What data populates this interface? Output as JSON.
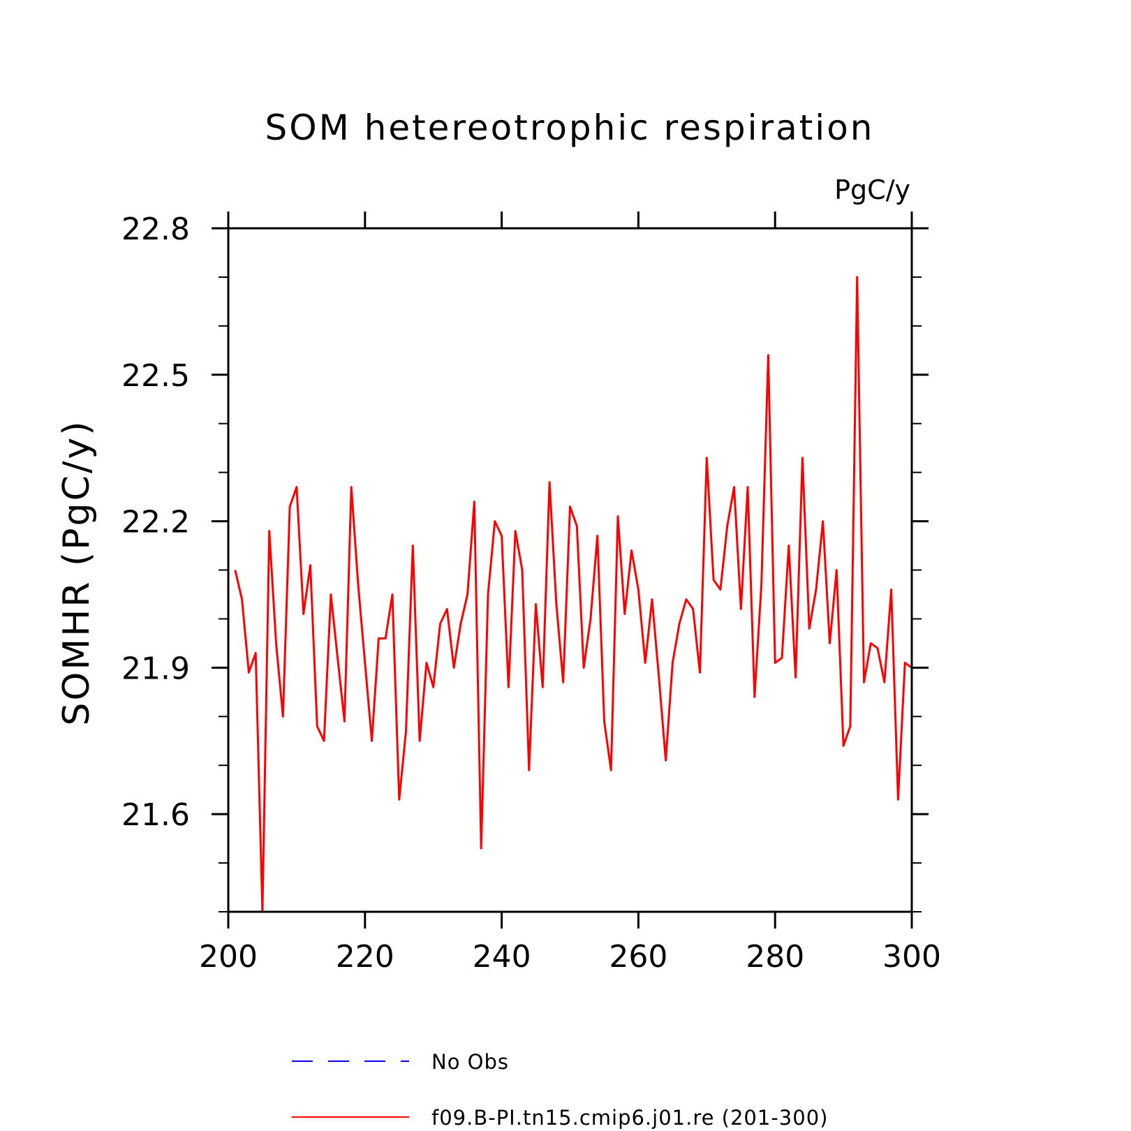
{
  "chart_data": {
    "type": "line",
    "title": "SOM hetereotrophic respiration",
    "units_label": "PgC/y",
    "ylabel": "SOMHR  (PgC/y)",
    "xlabel": "",
    "xlim": [
      200,
      300
    ],
    "ylim": [
      21.4,
      22.8
    ],
    "xticks": [
      200,
      220,
      240,
      260,
      280,
      300
    ],
    "xtick_labels": [
      "200",
      "220",
      "240",
      "260",
      "280",
      "300"
    ],
    "yticks": [
      21.6,
      21.9,
      22.2,
      22.5,
      22.8
    ],
    "ytick_labels": [
      "21.6",
      "21.9",
      "22.2",
      "22.5",
      "22.8"
    ],
    "grid": false,
    "legend_position": "bottom",
    "series": [
      {
        "name": "No Obs",
        "color": "#0000ff",
        "style": "dashed",
        "x": [],
        "y": []
      },
      {
        "name": "f09.B-PI.tn15.cmip6.j01.re (201-300)",
        "color": "#ff0000",
        "style": "solid",
        "x": [
          201,
          202,
          203,
          204,
          205,
          206,
          207,
          208,
          209,
          210,
          211,
          212,
          213,
          214,
          215,
          216,
          217,
          218,
          219,
          220,
          221,
          222,
          223,
          224,
          225,
          226,
          227,
          228,
          229,
          230,
          231,
          232,
          233,
          234,
          235,
          236,
          237,
          238,
          239,
          240,
          241,
          242,
          243,
          244,
          245,
          246,
          247,
          248,
          249,
          250,
          251,
          252,
          253,
          254,
          255,
          256,
          257,
          258,
          259,
          260,
          261,
          262,
          263,
          264,
          265,
          266,
          267,
          268,
          269,
          270,
          271,
          272,
          273,
          274,
          275,
          276,
          277,
          278,
          279,
          280,
          281,
          282,
          283,
          284,
          285,
          286,
          287,
          288,
          289,
          290,
          291,
          292,
          293,
          294,
          295,
          296,
          297,
          298,
          299,
          300
        ],
        "y": [
          22.1,
          22.04,
          21.89,
          21.93,
          21.4,
          22.18,
          21.95,
          21.8,
          22.23,
          22.27,
          22.01,
          22.11,
          21.78,
          21.75,
          22.05,
          21.92,
          21.79,
          22.27,
          22.07,
          21.91,
          21.75,
          21.96,
          21.96,
          22.05,
          21.63,
          21.77,
          22.15,
          21.75,
          21.91,
          21.86,
          21.99,
          22.02,
          21.9,
          21.99,
          22.05,
          22.24,
          21.53,
          22.05,
          22.2,
          22.17,
          21.86,
          22.18,
          22.1,
          21.69,
          22.03,
          21.86,
          22.28,
          22.03,
          21.87,
          22.23,
          22.19,
          21.9,
          22.0,
          22.17,
          21.79,
          21.69,
          22.21,
          22.01,
          22.14,
          22.06,
          21.91,
          22.04,
          21.88,
          21.71,
          21.91,
          21.99,
          22.04,
          22.02,
          21.89,
          22.33,
          22.08,
          22.06,
          22.19,
          22.27,
          22.02,
          22.27,
          21.84,
          22.07,
          22.54,
          21.91,
          21.92,
          22.15,
          21.88,
          22.33,
          21.98,
          22.06,
          22.2,
          21.95,
          22.1,
          21.74,
          21.78,
          22.7,
          21.87,
          21.95,
          21.94,
          21.87,
          22.06,
          21.63,
          21.91,
          21.9
        ]
      }
    ]
  }
}
